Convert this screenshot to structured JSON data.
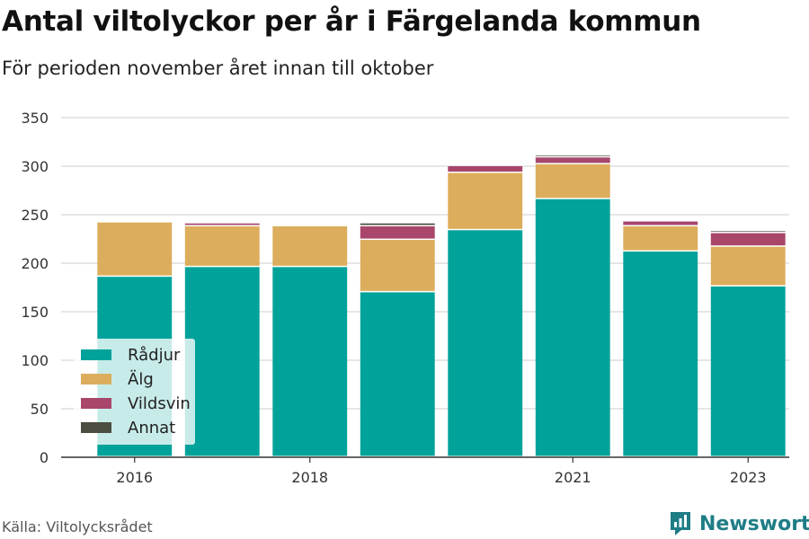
{
  "title": "Antal viltolyckor per år i Färgelanda kommun",
  "subtitle": "För perioden november året innan till oktober",
  "source": "Källa: Viltolycksrådet",
  "brand": "Newsworthy",
  "chart_data": {
    "type": "bar",
    "stacked": true,
    "categories": [
      "2016",
      "2017",
      "2018",
      "2019",
      "2020",
      "2021",
      "2022",
      "2023"
    ],
    "x_tick_labels": [
      "2016",
      "",
      "2018",
      "",
      "",
      "2021",
      "",
      "2023"
    ],
    "ylim": [
      0,
      350
    ],
    "y_ticks": [
      0,
      50,
      100,
      150,
      200,
      250,
      300,
      350
    ],
    "grid": true,
    "legend_position": "bottom-left",
    "series": [
      {
        "name": "Rådjur",
        "color": "#00a29a",
        "values": [
          186,
          196,
          196,
          170,
          234,
          266,
          212,
          176
        ]
      },
      {
        "name": "Älg",
        "color": "#dcad5c",
        "values": [
          56,
          42,
          42,
          54,
          59,
          36,
          26,
          41
        ]
      },
      {
        "name": "Vildsvin",
        "color": "#a8466c",
        "values": [
          0,
          3,
          0,
          14,
          7,
          7,
          5,
          14
        ]
      },
      {
        "name": "Annat",
        "color": "#4a4d40",
        "values": [
          0,
          0,
          0,
          3,
          0,
          2,
          0,
          2
        ]
      }
    ]
  }
}
